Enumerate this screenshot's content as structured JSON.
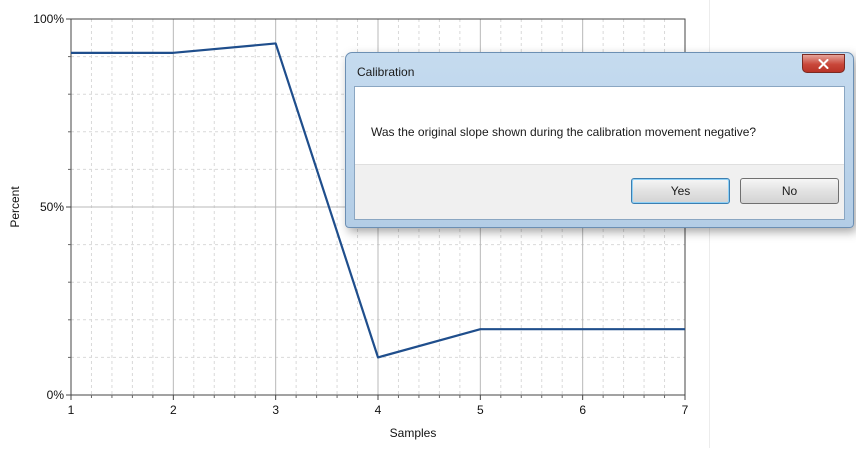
{
  "chart_data": {
    "type": "line",
    "x": [
      1,
      2,
      3,
      4,
      5,
      6,
      7
    ],
    "series": [
      {
        "values": [
          91,
          91,
          93.5,
          10,
          17.5,
          17.5,
          17.5
        ],
        "color": "#1f4e8c"
      }
    ],
    "xlabel": "Samples",
    "ylabel": "Percent",
    "xlim": [
      1,
      7
    ],
    "ylim": [
      0,
      100
    ],
    "x_ticks": [
      "1",
      "2",
      "3",
      "4",
      "5",
      "6",
      "7"
    ],
    "y_ticks": [
      "0%",
      "50%",
      "100%"
    ],
    "grid": true
  },
  "dialog": {
    "title": "Calibration",
    "message": "Was the original slope shown during the calibration movement negative?",
    "yes_label": "Yes",
    "no_label": "No"
  }
}
